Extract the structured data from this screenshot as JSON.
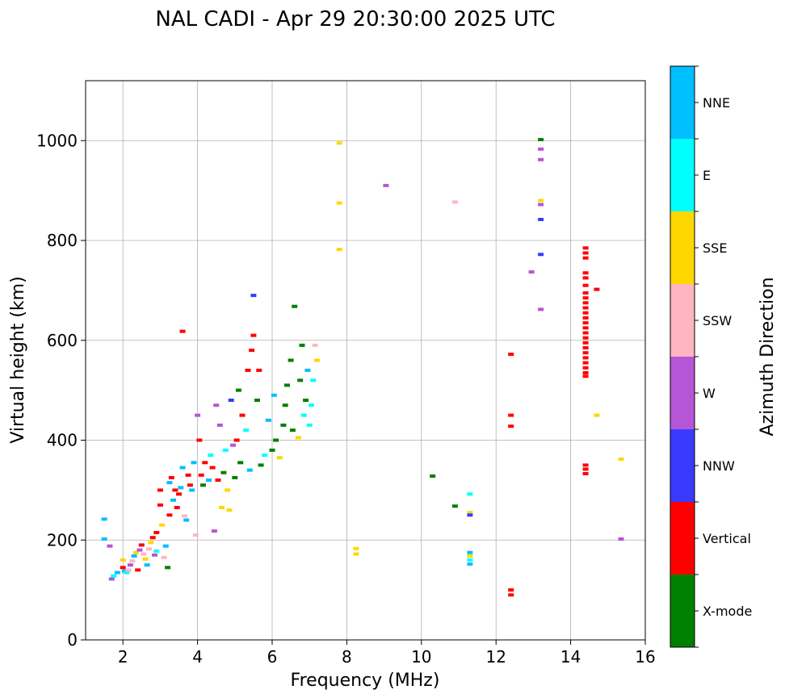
{
  "chart_data": {
    "type": "scatter",
    "title": "NAL CADI - Apr 29 20:30:00 2025 UTC",
    "xlabel": "Frequency (MHz)",
    "ylabel": "Virtual height (km)",
    "xlim": [
      1,
      16
    ],
    "ylim": [
      0,
      1120
    ],
    "xticks": [
      2,
      4,
      6,
      8,
      10,
      12,
      14,
      16
    ],
    "yticks": [
      0,
      200,
      400,
      600,
      800,
      1000
    ],
    "grid": true,
    "colorbar": {
      "title": "Azimuth Direction",
      "categories": [
        {
          "name": "X-mode",
          "color": "#008000"
        },
        {
          "name": "Vertical",
          "color": "#ff0000"
        },
        {
          "name": "NNW",
          "color": "#3a3aff"
        },
        {
          "name": "W",
          "color": "#b556d6"
        },
        {
          "name": "SSW",
          "color": "#ffb6c1"
        },
        {
          "name": "SSE",
          "color": "#ffd700"
        },
        {
          "name": "E",
          "color": "#00ffff"
        },
        {
          "name": "NNE",
          "color": "#00bfff"
        }
      ]
    },
    "points": [
      [
        1.5,
        242,
        "NNE"
      ],
      [
        1.5,
        202,
        "NNE"
      ],
      [
        1.65,
        188,
        "W"
      ],
      [
        1.7,
        122,
        "W"
      ],
      [
        1.75,
        128,
        "E"
      ],
      [
        1.85,
        135,
        "NNE"
      ],
      [
        2.0,
        160,
        "SSE"
      ],
      [
        2.0,
        145,
        "Vertical"
      ],
      [
        2.05,
        138,
        "NNE"
      ],
      [
        2.1,
        135,
        "E"
      ],
      [
        2.15,
        140,
        "SSW"
      ],
      [
        2.2,
        150,
        "W"
      ],
      [
        2.25,
        158,
        "SSW"
      ],
      [
        2.3,
        168,
        "NNE"
      ],
      [
        2.35,
        175,
        "SSE"
      ],
      [
        2.4,
        140,
        "Vertical"
      ],
      [
        2.45,
        180,
        "W"
      ],
      [
        2.5,
        190,
        "Vertical"
      ],
      [
        2.55,
        172,
        "SSW"
      ],
      [
        2.6,
        162,
        "SSE"
      ],
      [
        2.65,
        150,
        "NNE"
      ],
      [
        2.7,
        182,
        "SSW"
      ],
      [
        2.75,
        195,
        "SSE"
      ],
      [
        2.8,
        205,
        "Vertical"
      ],
      [
        2.85,
        170,
        "W"
      ],
      [
        2.9,
        178,
        "E"
      ],
      [
        2.9,
        215,
        "Vertical"
      ],
      [
        3.0,
        270,
        "Vertical"
      ],
      [
        3.0,
        300,
        "Vertical"
      ],
      [
        3.05,
        230,
        "SSE"
      ],
      [
        3.1,
        165,
        "SSW"
      ],
      [
        3.15,
        188,
        "NNE"
      ],
      [
        3.2,
        145,
        "X-mode"
      ],
      [
        3.25,
        250,
        "Vertical"
      ],
      [
        3.25,
        315,
        "NNE"
      ],
      [
        3.3,
        325,
        "Vertical"
      ],
      [
        3.35,
        280,
        "NNE"
      ],
      [
        3.4,
        300,
        "Vertical"
      ],
      [
        3.45,
        265,
        "Vertical"
      ],
      [
        3.5,
        292,
        "Vertical"
      ],
      [
        3.55,
        305,
        "NNE"
      ],
      [
        3.6,
        345,
        "NNE"
      ],
      [
        3.6,
        618,
        "Vertical"
      ],
      [
        3.65,
        248,
        "SSW"
      ],
      [
        3.7,
        240,
        "NNE"
      ],
      [
        3.75,
        330,
        "Vertical"
      ],
      [
        3.8,
        310,
        "Vertical"
      ],
      [
        3.85,
        300,
        "NNE"
      ],
      [
        3.9,
        355,
        "NNE"
      ],
      [
        3.95,
        210,
        "SSW"
      ],
      [
        4.0,
        450,
        "W"
      ],
      [
        4.05,
        400,
        "Vertical"
      ],
      [
        4.1,
        330,
        "Vertical"
      ],
      [
        4.15,
        310,
        "X-mode"
      ],
      [
        4.2,
        355,
        "Vertical"
      ],
      [
        4.3,
        320,
        "NNE"
      ],
      [
        4.35,
        370,
        "E"
      ],
      [
        4.4,
        345,
        "Vertical"
      ],
      [
        4.45,
        218,
        "W"
      ],
      [
        4.5,
        470,
        "W"
      ],
      [
        4.55,
        320,
        "Vertical"
      ],
      [
        4.6,
        430,
        "W"
      ],
      [
        4.65,
        265,
        "SSE"
      ],
      [
        4.7,
        335,
        "X-mode"
      ],
      [
        4.75,
        380,
        "E"
      ],
      [
        4.8,
        300,
        "SSE"
      ],
      [
        4.85,
        260,
        "SSE"
      ],
      [
        4.9,
        480,
        "NNW"
      ],
      [
        4.95,
        390,
        "W"
      ],
      [
        5.0,
        325,
        "X-mode"
      ],
      [
        5.05,
        400,
        "Vertical"
      ],
      [
        5.1,
        500,
        "X-mode"
      ],
      [
        5.15,
        355,
        "X-mode"
      ],
      [
        5.2,
        450,
        "Vertical"
      ],
      [
        5.3,
        420,
        "E"
      ],
      [
        5.35,
        540,
        "Vertical"
      ],
      [
        5.4,
        340,
        "NNE"
      ],
      [
        5.45,
        580,
        "Vertical"
      ],
      [
        5.5,
        690,
        "NNW"
      ],
      [
        5.5,
        610,
        "Vertical"
      ],
      [
        5.6,
        480,
        "X-mode"
      ],
      [
        5.65,
        540,
        "Vertical"
      ],
      [
        5.7,
        350,
        "X-mode"
      ],
      [
        5.8,
        370,
        "E"
      ],
      [
        5.9,
        440,
        "NNE"
      ],
      [
        6.0,
        380,
        "X-mode"
      ],
      [
        6.05,
        490,
        "NNE"
      ],
      [
        6.1,
        400,
        "X-mode"
      ],
      [
        6.2,
        365,
        "SSE"
      ],
      [
        6.3,
        430,
        "X-mode"
      ],
      [
        6.35,
        470,
        "X-mode"
      ],
      [
        6.4,
        510,
        "X-mode"
      ],
      [
        6.5,
        560,
        "X-mode"
      ],
      [
        6.55,
        420,
        "X-mode"
      ],
      [
        6.6,
        668,
        "X-mode"
      ],
      [
        6.7,
        405,
        "SSE"
      ],
      [
        6.75,
        520,
        "X-mode"
      ],
      [
        6.8,
        590,
        "X-mode"
      ],
      [
        6.85,
        450,
        "E"
      ],
      [
        6.9,
        480,
        "X-mode"
      ],
      [
        6.95,
        540,
        "NNE"
      ],
      [
        7.0,
        430,
        "E"
      ],
      [
        7.05,
        470,
        "E"
      ],
      [
        7.1,
        520,
        "E"
      ],
      [
        7.15,
        590,
        "SSW"
      ],
      [
        7.2,
        560,
        "SSE"
      ],
      [
        7.8,
        995,
        "SSE"
      ],
      [
        7.8,
        875,
        "SSE"
      ],
      [
        7.8,
        782,
        "SSE"
      ],
      [
        8.25,
        183,
        "SSE"
      ],
      [
        8.25,
        172,
        "SSE"
      ],
      [
        9.05,
        910,
        "W"
      ],
      [
        10.3,
        328,
        "X-mode"
      ],
      [
        10.9,
        268,
        "X-mode"
      ],
      [
        10.9,
        877,
        "SSW"
      ],
      [
        11.3,
        292,
        "E"
      ],
      [
        11.3,
        255,
        "SSE"
      ],
      [
        11.3,
        250,
        "NNW"
      ],
      [
        11.3,
        175,
        "NNE"
      ],
      [
        11.3,
        168,
        "SSE"
      ],
      [
        11.3,
        160,
        "E"
      ],
      [
        11.3,
        152,
        "NNE"
      ],
      [
        12.4,
        572,
        "Vertical"
      ],
      [
        12.4,
        450,
        "Vertical"
      ],
      [
        12.4,
        428,
        "Vertical"
      ],
      [
        12.4,
        100,
        "Vertical"
      ],
      [
        12.4,
        90,
        "Vertical"
      ],
      [
        12.95,
        737,
        "W"
      ],
      [
        13.2,
        1002,
        "X-mode"
      ],
      [
        13.2,
        983,
        "W"
      ],
      [
        13.2,
        962,
        "W"
      ],
      [
        13.2,
        880,
        "SSE"
      ],
      [
        13.2,
        872,
        "W"
      ],
      [
        13.2,
        842,
        "NNW"
      ],
      [
        13.2,
        772,
        "NNW"
      ],
      [
        13.2,
        662,
        "W"
      ],
      [
        14.4,
        785,
        "Vertical"
      ],
      [
        14.4,
        775,
        "Vertical"
      ],
      [
        14.4,
        765,
        "Vertical"
      ],
      [
        14.4,
        735,
        "Vertical"
      ],
      [
        14.4,
        725,
        "Vertical"
      ],
      [
        14.4,
        710,
        "Vertical"
      ],
      [
        14.4,
        695,
        "Vertical"
      ],
      [
        14.4,
        685,
        "Vertical"
      ],
      [
        14.4,
        675,
        "Vertical"
      ],
      [
        14.4,
        665,
        "Vertical"
      ],
      [
        14.4,
        655,
        "Vertical"
      ],
      [
        14.4,
        645,
        "Vertical"
      ],
      [
        14.4,
        635,
        "Vertical"
      ],
      [
        14.4,
        625,
        "Vertical"
      ],
      [
        14.4,
        615,
        "Vertical"
      ],
      [
        14.4,
        605,
        "Vertical"
      ],
      [
        14.4,
        595,
        "Vertical"
      ],
      [
        14.4,
        585,
        "Vertical"
      ],
      [
        14.4,
        575,
        "Vertical"
      ],
      [
        14.4,
        565,
        "Vertical"
      ],
      [
        14.4,
        555,
        "Vertical"
      ],
      [
        14.4,
        545,
        "Vertical"
      ],
      [
        14.4,
        535,
        "Vertical"
      ],
      [
        14.4,
        528,
        "Vertical"
      ],
      [
        14.4,
        350,
        "Vertical"
      ],
      [
        14.4,
        342,
        "Vertical"
      ],
      [
        14.4,
        333,
        "Vertical"
      ],
      [
        14.7,
        702,
        "Vertical"
      ],
      [
        14.7,
        450,
        "SSE"
      ],
      [
        15.35,
        362,
        "SSE"
      ],
      [
        15.35,
        202,
        "W"
      ]
    ]
  }
}
